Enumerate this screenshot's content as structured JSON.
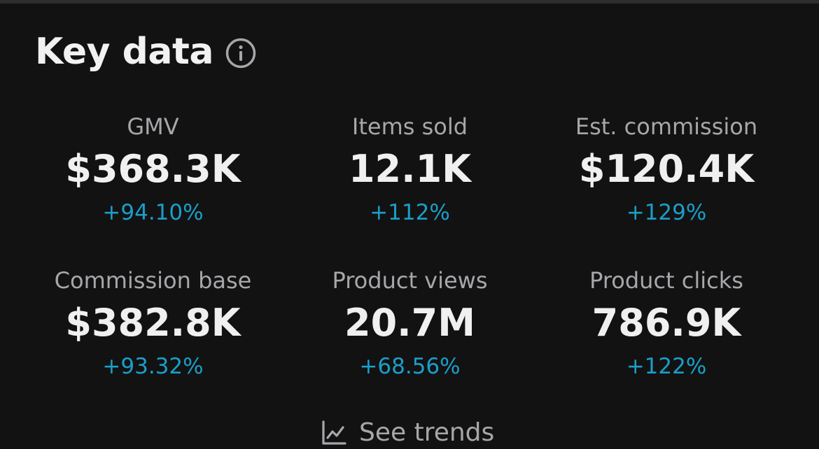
{
  "header": {
    "title": "Key data",
    "info_icon": "info-icon"
  },
  "metrics": [
    {
      "label": "GMV",
      "value": "$368.3K",
      "change": "+94.10%"
    },
    {
      "label": "Items sold",
      "value": "12.1K",
      "change": "+112%"
    },
    {
      "label": "Est. commission",
      "value": "$120.4K",
      "change": "+129%"
    },
    {
      "label": "Commission base",
      "value": "$382.8K",
      "change": "+93.32%"
    },
    {
      "label": "Product views",
      "value": "20.7M",
      "change": "+68.56%"
    },
    {
      "label": "Product clicks",
      "value": "786.9K",
      "change": "+122%"
    }
  ],
  "footer": {
    "trends_label": "See trends",
    "trends_icon": "line-chart-icon"
  },
  "colors": {
    "background": "#121212",
    "title": "#f2f2f2",
    "label": "#a7a7ab",
    "value": "#f0f0f0",
    "positive_change": "#1b9ec9"
  }
}
